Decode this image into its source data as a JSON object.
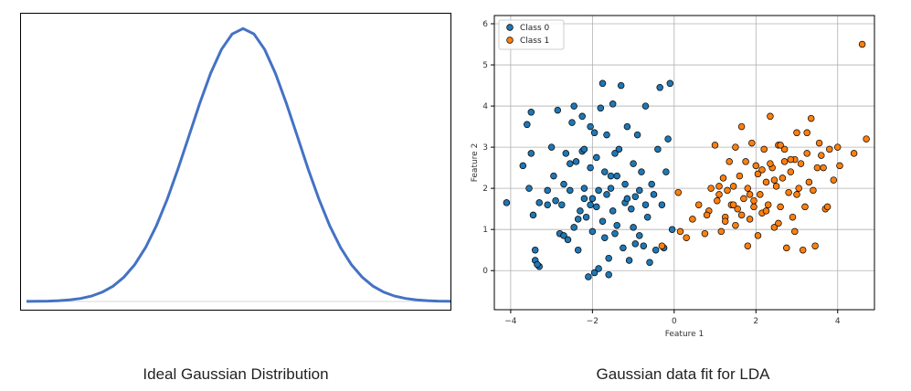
{
  "captions": {
    "left": "Ideal Gaussian Distribution",
    "right": "Gaussian data fit for LDA"
  },
  "chart_data": [
    {
      "type": "line",
      "title": "",
      "series": [
        {
          "name": "",
          "x": [
            -4.0,
            -3.8,
            -3.6,
            -3.4,
            -3.2,
            -3.0,
            -2.8,
            -2.6,
            -2.4,
            -2.2,
            -2.0,
            -1.8,
            -1.6,
            -1.4,
            -1.2,
            -1.0,
            -0.8,
            -0.6,
            -0.4,
            -0.2,
            0.0,
            0.2,
            0.4,
            0.6,
            0.8,
            1.0,
            1.2,
            1.4,
            1.6,
            1.8,
            2.0,
            2.2,
            2.4,
            2.6,
            2.8,
            3.0,
            3.2,
            3.4,
            3.6,
            3.8,
            4.0
          ],
          "y": [
            0.0001,
            0.0003,
            0.0006,
            0.0012,
            0.0024,
            0.0044,
            0.0079,
            0.0136,
            0.0224,
            0.0355,
            0.054,
            0.079,
            0.1109,
            0.1497,
            0.1942,
            0.242,
            0.2897,
            0.3332,
            0.3683,
            0.391,
            0.3989,
            0.391,
            0.3683,
            0.3332,
            0.2897,
            0.242,
            0.1942,
            0.1497,
            0.1109,
            0.079,
            0.054,
            0.0355,
            0.0224,
            0.0136,
            0.0079,
            0.0044,
            0.0024,
            0.0012,
            0.0006,
            0.0003,
            0.0001
          ]
        }
      ],
      "xlim": [
        -4,
        4
      ],
      "ylim": [
        0,
        0.41
      ],
      "color": "#4472c4",
      "axes_visible": false
    },
    {
      "type": "scatter",
      "xlabel": "Feature 1",
      "ylabel": "Feature 2",
      "xlim": [
        -4.4,
        4.9
      ],
      "ylim": [
        -0.95,
        6.2
      ],
      "xticks": [
        -4,
        -2,
        0,
        2,
        4
      ],
      "yticks": [
        0,
        1,
        2,
        3,
        4,
        5,
        6
      ],
      "xtick_labels": [
        "−4",
        "−2",
        "0",
        "2",
        "4"
      ],
      "ytick_labels": [
        "0",
        "1",
        "2",
        "3",
        "4",
        "5",
        "6"
      ],
      "grid": true,
      "legend": "top-left",
      "series": [
        {
          "name": "Class 0",
          "color": "#1f77b4",
          "points": [
            [
              -4.1,
              1.65
            ],
            [
              -3.7,
              2.55
            ],
            [
              -3.6,
              3.55
            ],
            [
              -3.5,
              3.85
            ],
            [
              -3.5,
              2.85
            ],
            [
              -3.45,
              1.35
            ],
            [
              -3.4,
              0.5
            ],
            [
              -3.4,
              0.25
            ],
            [
              -3.3,
              0.1
            ],
            [
              -3.3,
              1.65
            ],
            [
              -3.1,
              1.95
            ],
            [
              -3.1,
              1.6
            ],
            [
              -3.0,
              3.0
            ],
            [
              -2.95,
              2.3
            ],
            [
              -2.85,
              3.9
            ],
            [
              -2.8,
              0.9
            ],
            [
              -2.75,
              1.6
            ],
            [
              -2.7,
              2.1
            ],
            [
              -2.7,
              0.85
            ],
            [
              -2.6,
              0.75
            ],
            [
              -2.55,
              1.95
            ],
            [
              -2.5,
              3.6
            ],
            [
              -2.45,
              1.05
            ],
            [
              -2.4,
              2.65
            ],
            [
              -2.35,
              0.5
            ],
            [
              -2.3,
              1.45
            ],
            [
              -2.25,
              3.75
            ],
            [
              -2.25,
              2.9
            ],
            [
              -2.2,
              1.75
            ],
            [
              -2.2,
              2.0
            ],
            [
              -2.15,
              1.3
            ],
            [
              -2.1,
              -0.15
            ],
            [
              -2.05,
              3.5
            ],
            [
              -2.05,
              2.5
            ],
            [
              -2.0,
              1.75
            ],
            [
              -2.0,
              0.95
            ],
            [
              -1.95,
              -0.05
            ],
            [
              -1.9,
              1.55
            ],
            [
              -1.9,
              2.75
            ],
            [
              -1.85,
              1.95
            ],
            [
              -1.8,
              3.95
            ],
            [
              -1.75,
              1.2
            ],
            [
              -1.7,
              0.8
            ],
            [
              -1.7,
              2.4
            ],
            [
              -1.65,
              3.3
            ],
            [
              -1.6,
              0.3
            ],
            [
              -1.6,
              -0.1
            ],
            [
              -1.55,
              2.0
            ],
            [
              -1.5,
              4.05
            ],
            [
              -1.5,
              1.45
            ],
            [
              -1.45,
              0.9
            ],
            [
              -1.4,
              2.3
            ],
            [
              -1.4,
              1.1
            ],
            [
              -1.35,
              2.95
            ],
            [
              -1.3,
              4.5
            ],
            [
              -1.25,
              0.55
            ],
            [
              -1.2,
              1.65
            ],
            [
              -1.2,
              2.1
            ],
            [
              -1.15,
              3.5
            ],
            [
              -1.1,
              0.25
            ],
            [
              -1.05,
              1.5
            ],
            [
              -1.0,
              1.05
            ],
            [
              -1.0,
              2.6
            ],
            [
              -0.95,
              0.65
            ],
            [
              -0.9,
              3.3
            ],
            [
              -0.85,
              1.95
            ],
            [
              -0.8,
              2.4
            ],
            [
              -0.75,
              0.6
            ],
            [
              -0.7,
              1.6
            ],
            [
              -0.7,
              4.0
            ],
            [
              -0.65,
              1.3
            ],
            [
              -0.6,
              0.2
            ],
            [
              -0.55,
              2.1
            ],
            [
              -0.5,
              1.85
            ],
            [
              -0.45,
              0.5
            ],
            [
              -0.4,
              2.95
            ],
            [
              -0.35,
              4.45
            ],
            [
              -0.3,
              1.6
            ],
            [
              -0.25,
              0.55
            ],
            [
              -0.2,
              2.4
            ],
            [
              -0.15,
              3.2
            ],
            [
              -0.1,
              4.55
            ],
            [
              -0.05,
              1.0
            ],
            [
              -1.75,
              4.55
            ],
            [
              -2.2,
              2.95
            ],
            [
              -1.95,
              3.35
            ],
            [
              -1.55,
              2.3
            ],
            [
              -2.35,
              1.25
            ],
            [
              -2.9,
              1.7
            ],
            [
              -3.35,
              0.15
            ],
            [
              -1.85,
              0.05
            ],
            [
              -2.65,
              2.85
            ],
            [
              -1.15,
              1.75
            ],
            [
              -0.95,
              1.8
            ],
            [
              -2.45,
              4.0
            ],
            [
              -1.45,
              2.85
            ],
            [
              -2.05,
              1.6
            ],
            [
              -2.55,
              2.6
            ],
            [
              -0.85,
              0.85
            ],
            [
              -1.65,
              1.85
            ],
            [
              -3.55,
              2.0
            ]
          ]
        },
        {
          "name": "Class 1",
          "color": "#ff7f0e",
          "points": [
            [
              -0.3,
              0.6
            ],
            [
              0.1,
              1.9
            ],
            [
              0.15,
              0.95
            ],
            [
              0.3,
              0.8
            ],
            [
              0.45,
              1.25
            ],
            [
              0.6,
              1.6
            ],
            [
              0.75,
              0.9
            ],
            [
              0.85,
              1.45
            ],
            [
              0.9,
              2.0
            ],
            [
              1.0,
              3.05
            ],
            [
              1.05,
              1.7
            ],
            [
              1.1,
              1.85
            ],
            [
              1.15,
              0.95
            ],
            [
              1.2,
              2.25
            ],
            [
              1.25,
              1.3
            ],
            [
              1.3,
              1.95
            ],
            [
              1.35,
              2.65
            ],
            [
              1.4,
              1.6
            ],
            [
              1.45,
              2.05
            ],
            [
              1.5,
              1.1
            ],
            [
              1.5,
              3.0
            ],
            [
              1.55,
              1.5
            ],
            [
              1.6,
              2.3
            ],
            [
              1.65,
              3.5
            ],
            [
              1.7,
              1.75
            ],
            [
              1.75,
              2.65
            ],
            [
              1.8,
              0.6
            ],
            [
              1.8,
              2.0
            ],
            [
              1.85,
              1.25
            ],
            [
              1.9,
              3.1
            ],
            [
              1.95,
              1.55
            ],
            [
              2.0,
              2.55
            ],
            [
              2.05,
              2.35
            ],
            [
              2.1,
              1.85
            ],
            [
              2.15,
              1.4
            ],
            [
              2.2,
              2.95
            ],
            [
              2.25,
              2.15
            ],
            [
              2.3,
              1.6
            ],
            [
              2.35,
              3.75
            ],
            [
              2.4,
              2.5
            ],
            [
              2.45,
              1.05
            ],
            [
              2.5,
              2.05
            ],
            [
              2.55,
              3.05
            ],
            [
              2.6,
              1.55
            ],
            [
              2.65,
              2.25
            ],
            [
              2.7,
              2.95
            ],
            [
              2.75,
              0.55
            ],
            [
              2.8,
              1.9
            ],
            [
              2.85,
              2.4
            ],
            [
              2.9,
              1.3
            ],
            [
              2.95,
              2.7
            ],
            [
              3.0,
              3.35
            ],
            [
              3.05,
              2.0
            ],
            [
              3.1,
              2.6
            ],
            [
              3.15,
              0.5
            ],
            [
              3.2,
              1.55
            ],
            [
              3.25,
              2.85
            ],
            [
              3.3,
              2.15
            ],
            [
              3.35,
              3.7
            ],
            [
              3.4,
              1.95
            ],
            [
              3.45,
              0.6
            ],
            [
              3.5,
              2.5
            ],
            [
              3.55,
              3.1
            ],
            [
              3.6,
              2.8
            ],
            [
              3.7,
              1.5
            ],
            [
              3.8,
              2.95
            ],
            [
              3.9,
              2.2
            ],
            [
              4.0,
              3.0
            ],
            [
              4.05,
              2.55
            ],
            [
              4.4,
              2.85
            ],
            [
              4.6,
              5.5
            ],
            [
              4.7,
              3.2
            ],
            [
              1.95,
              1.7
            ],
            [
              2.7,
              2.65
            ],
            [
              1.25,
              1.2
            ],
            [
              2.35,
              2.6
            ],
            [
              3.0,
              1.85
            ],
            [
              2.85,
              2.7
            ],
            [
              1.65,
              1.35
            ],
            [
              2.15,
              2.45
            ],
            [
              0.8,
              1.35
            ],
            [
              3.25,
              3.35
            ],
            [
              2.55,
              1.15
            ],
            [
              1.45,
              1.6
            ],
            [
              2.95,
              0.95
            ],
            [
              3.65,
              2.5
            ],
            [
              2.05,
              0.85
            ],
            [
              1.85,
              1.85
            ],
            [
              3.75,
              1.55
            ],
            [
              2.25,
              1.45
            ],
            [
              1.1,
              2.05
            ],
            [
              2.6,
              3.05
            ],
            [
              2.45,
              2.2
            ]
          ]
        }
      ]
    }
  ]
}
